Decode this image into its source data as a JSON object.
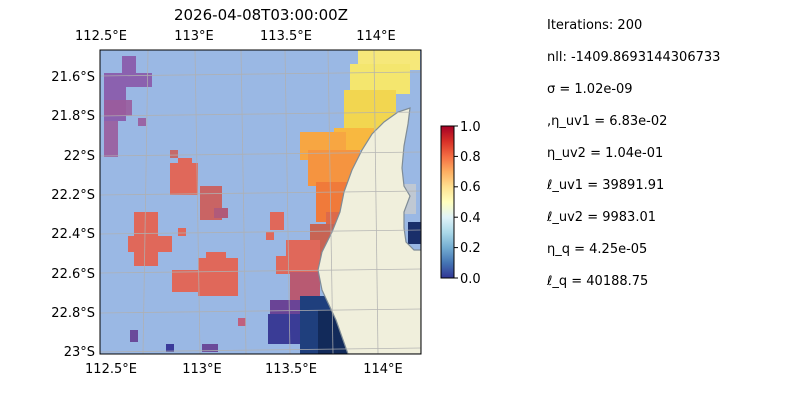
{
  "map": {
    "title": "2026-04-08T03:00:00Z",
    "lon_ticks": [
      "112.5°E",
      "113°E",
      "113.5°E",
      "114°E"
    ],
    "lat_ticks": [
      "21.6°S",
      "21.8°S",
      "22°S",
      "22.2°S",
      "22.4°S",
      "22.6°S",
      "22.8°S",
      "23°S"
    ],
    "extent": {
      "lon": [
        112.5,
        114.2
      ],
      "lat": [
        -23.0,
        -21.5
      ]
    },
    "ocean_color": "#9ab8e4",
    "land_color": "#f0efdc",
    "coast_color": "#7f8c96",
    "grid_color": "#b0b0b0",
    "colormap": "RdYlBu_r"
  },
  "colorbar": {
    "ticks": [
      "0.0",
      "0.2",
      "0.4",
      "0.6",
      "0.8",
      "1.0"
    ],
    "range": [
      0,
      1
    ]
  },
  "params": [
    "Iterations: 200",
    "nll: -1409.8693144306733",
    "σ = 1.02e-09",
    ",η_uv1 = 6.83e-02",
    "η_uv2 = 1.04e-01",
    "ℓ_uv1 = 39891.91",
    "ℓ_uv2 = 9983.01",
    "η_q = 4.25e-05",
    "ℓ_q = 40188.75"
  ]
}
